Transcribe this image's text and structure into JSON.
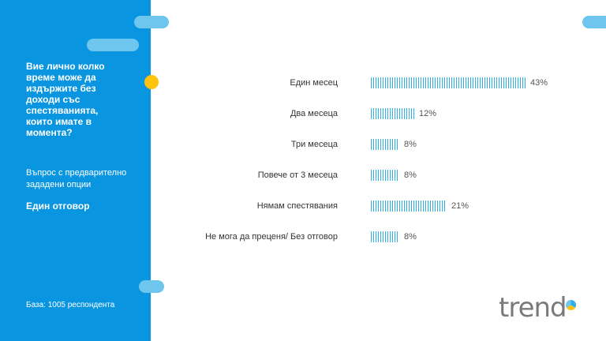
{
  "sidebar": {
    "question": "Вие лично колко време може да издържите без доходи със спестяванията, които имате в момента?",
    "note": "Въпрос с предварително зададени опции",
    "answer_type": "Един отговор",
    "base": "База: 1005 респондента"
  },
  "logo_text": "trend",
  "colors": {
    "sidebar": "#0a95e0",
    "bar": "#2bb0e8",
    "accent": "#ffc20e"
  },
  "chart_data": {
    "type": "bar",
    "orientation": "horizontal",
    "categories": [
      "Един месец",
      "Два месеца",
      "Три месеца",
      "Повече от 3 месеца",
      "Нямам спестявания",
      "Не мога да преценя/ Без отговор"
    ],
    "values": [
      43,
      12,
      8,
      8,
      21,
      8
    ],
    "value_labels": [
      "43%",
      "12%",
      "8%",
      "8%",
      "21%",
      "8%"
    ],
    "unit": "%",
    "xlim": [
      0,
      43
    ]
  }
}
